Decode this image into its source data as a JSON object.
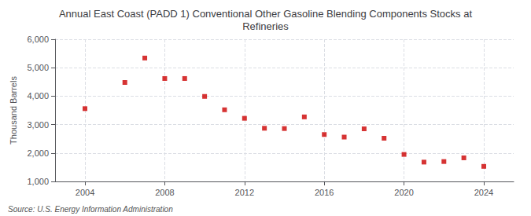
{
  "chart_data": {
    "type": "scatter",
    "title": "Annual East Coast (PADD 1) Conventional Other Gasoline Blending Components Stocks at\nRefineries",
    "ylabel": "Thousand Barrels",
    "annotations": [
      "Source: U.S. Energy Information Administration"
    ],
    "x": [
      2004,
      2006,
      2007,
      2008,
      2009,
      2010,
      2011,
      2012,
      2013,
      2014,
      2015,
      2016,
      2017,
      2018,
      2019,
      2020,
      2021,
      2022,
      2023,
      2024
    ],
    "values": [
      3560,
      4480,
      5340,
      4620,
      4620,
      3990,
      3520,
      3220,
      2870,
      2860,
      3270,
      2650,
      2560,
      2850,
      2520,
      1950,
      1680,
      1700,
      1830,
      1530
    ],
    "color": "#cc0000",
    "marker": "square",
    "xlim": [
      2002.5,
      2025.5
    ],
    "xticks": [
      2004,
      2008,
      2012,
      2016,
      2020,
      2024
    ],
    "ylim": [
      1000,
      6000
    ],
    "yticks": [
      {
        "value": 1000,
        "label": "1,000"
      },
      {
        "value": 2000,
        "label": "2,000"
      },
      {
        "value": 3000,
        "label": "3,000"
      },
      {
        "value": 4000,
        "label": "4,000"
      },
      {
        "value": 5000,
        "label": "5,000"
      },
      {
        "value": 6000,
        "label": "6,000"
      }
    ],
    "grid": true
  }
}
